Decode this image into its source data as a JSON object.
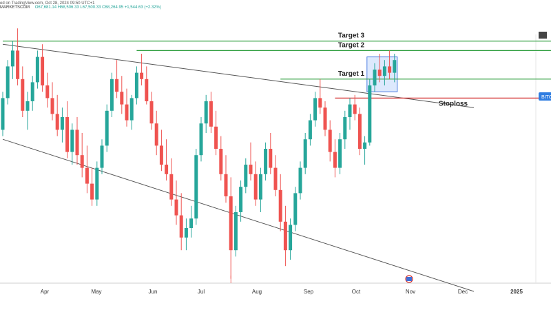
{
  "header": {
    "published": "ed on TradingView.com, Oct 28, 2024 09:50 UTC+1",
    "symbol": "MARKETSCOM",
    "ohlc": "O67,681.14 H68,506.33 L67,500.33 C68,264.95 +1,544.63 (+2.32%)"
  },
  "chart_data": {
    "type": "candlestick",
    "x_ticks": [
      "Apr",
      "May",
      "Jun",
      "Jul",
      "Aug",
      "Sep",
      "Oct",
      "Nov",
      "Dec",
      "2025"
    ],
    "price_badge": "BITC",
    "levels": [
      {
        "label": "Target 3",
        "color": "#2e9e3e"
      },
      {
        "label": "Target 2",
        "color": "#2e9e3e"
      },
      {
        "label": "Target 1",
        "color": "#2e9e3e"
      },
      {
        "label": "Stoploss",
        "color": "#d32f2f"
      }
    ],
    "candles": [
      [
        46,
        58,
        44,
        56
      ],
      [
        56,
        68,
        54,
        66
      ],
      [
        66,
        74,
        62,
        71
      ],
      [
        71,
        78,
        60,
        62
      ],
      [
        62,
        66,
        50,
        52
      ],
      [
        52,
        58,
        46,
        55
      ],
      [
        55,
        63,
        52,
        61
      ],
      [
        61,
        71,
        59,
        69
      ],
      [
        69,
        73,
        58,
        60
      ],
      [
        60,
        64,
        53,
        56
      ],
      [
        56,
        61,
        49,
        51
      ],
      [
        51,
        57,
        44,
        46
      ],
      [
        46,
        53,
        42,
        50
      ],
      [
        50,
        55,
        37,
        39
      ],
      [
        39,
        48,
        35,
        46
      ],
      [
        46,
        50,
        35,
        38
      ],
      [
        38,
        45,
        31,
        34
      ],
      [
        34,
        41,
        26,
        29
      ],
      [
        29,
        34,
        22,
        24
      ],
      [
        24,
        36,
        22,
        34
      ],
      [
        34,
        43,
        32,
        41
      ],
      [
        41,
        54,
        39,
        52
      ],
      [
        52,
        64,
        50,
        62
      ],
      [
        62,
        68,
        56,
        58
      ],
      [
        58,
        63,
        51,
        54
      ],
      [
        54,
        59,
        47,
        49
      ],
      [
        49,
        57,
        46,
        56
      ],
      [
        56,
        66,
        54,
        64
      ],
      [
        64,
        70,
        60,
        62
      ],
      [
        62,
        66,
        54,
        55
      ],
      [
        55,
        58,
        46,
        48
      ],
      [
        48,
        52,
        38,
        41
      ],
      [
        41,
        46,
        33,
        35
      ],
      [
        35,
        43,
        30,
        32
      ],
      [
        32,
        37,
        22,
        24
      ],
      [
        24,
        30,
        16,
        19
      ],
      [
        19,
        26,
        8,
        12
      ],
      [
        12,
        18,
        8,
        15
      ],
      [
        15,
        22,
        12,
        18
      ],
      [
        18,
        40,
        16,
        38
      ],
      [
        38,
        50,
        36,
        48
      ],
      [
        48,
        57,
        45,
        55
      ],
      [
        55,
        58,
        45,
        47
      ],
      [
        47,
        52,
        38,
        40
      ],
      [
        40,
        44,
        30,
        32
      ],
      [
        32,
        38,
        23,
        25
      ],
      [
        25,
        31,
        -1,
        8
      ],
      [
        8,
        22,
        6,
        20
      ],
      [
        20,
        30,
        17,
        28
      ],
      [
        28,
        37,
        26,
        35
      ],
      [
        35,
        42,
        30,
        32
      ],
      [
        32,
        36,
        22,
        24
      ],
      [
        24,
        34,
        20,
        32
      ],
      [
        32,
        42,
        30,
        40
      ],
      [
        40,
        45,
        32,
        34
      ],
      [
        34,
        38,
        25,
        27
      ],
      [
        27,
        32,
        14,
        17
      ],
      [
        17,
        22,
        3,
        8
      ],
      [
        8,
        18,
        5,
        16
      ],
      [
        16,
        28,
        14,
        26
      ],
      [
        26,
        36,
        24,
        34
      ],
      [
        34,
        45,
        32,
        43
      ],
      [
        43,
        51,
        41,
        49
      ],
      [
        49,
        58,
        47,
        56
      ],
      [
        56,
        62,
        51,
        53
      ],
      [
        53,
        55,
        44,
        46
      ],
      [
        46,
        49,
        36,
        39
      ],
      [
        39,
        43,
        31,
        34
      ],
      [
        34,
        45,
        32,
        43
      ],
      [
        43,
        52,
        40,
        50
      ],
      [
        50,
        56,
        46,
        54
      ],
      [
        54,
        57,
        49,
        51
      ],
      [
        51,
        53,
        38,
        40
      ],
      [
        40,
        44,
        35,
        42
      ],
      [
        42,
        62,
        41,
        60
      ],
      [
        60,
        67,
        58,
        65
      ],
      [
        65,
        70,
        61,
        63
      ],
      [
        63,
        68,
        60,
        66
      ],
      [
        66,
        71,
        62,
        64
      ],
      [
        64,
        70,
        61,
        68
      ]
    ],
    "channel": {
      "upper": [
        [
          0,
          73
        ],
        [
          95,
          53
        ]
      ],
      "lower": [
        [
          0,
          43
        ],
        [
          95,
          -5
        ]
      ]
    },
    "target_lines": [
      {
        "start": 0,
        "value": 74
      },
      {
        "start": 27,
        "value": 71
      },
      {
        "start": 56,
        "value": 62
      },
      {
        "start": 67,
        "value": 56
      }
    ],
    "consolidation_box": {
      "from": 74,
      "to": 79,
      "low": 58,
      "high": 69
    }
  }
}
